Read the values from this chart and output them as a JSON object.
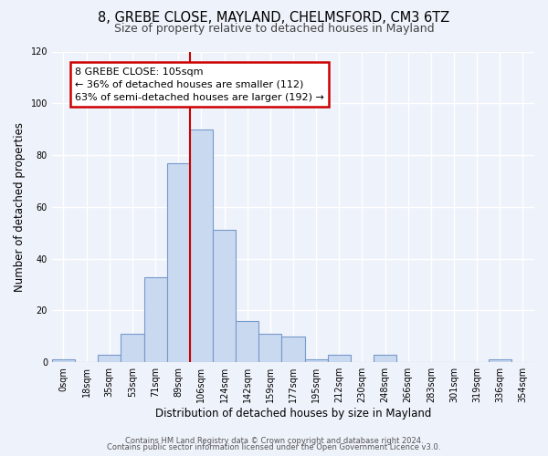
{
  "title1": "8, GREBE CLOSE, MAYLAND, CHELMSFORD, CM3 6TZ",
  "title2": "Size of property relative to detached houses in Mayland",
  "xlabel": "Distribution of detached houses by size in Mayland",
  "ylabel": "Number of detached properties",
  "bin_labels": [
    "0sqm",
    "18sqm",
    "35sqm",
    "53sqm",
    "71sqm",
    "89sqm",
    "106sqm",
    "124sqm",
    "142sqm",
    "159sqm",
    "177sqm",
    "195sqm",
    "212sqm",
    "230sqm",
    "248sqm",
    "266sqm",
    "283sqm",
    "301sqm",
    "319sqm",
    "336sqm",
    "354sqm"
  ],
  "bar_heights": [
    1,
    0,
    3,
    11,
    33,
    77,
    90,
    51,
    16,
    11,
    10,
    1,
    3,
    0,
    3,
    0,
    0,
    0,
    0,
    1,
    0
  ],
  "bar_color": "#c9d9f0",
  "bar_edge_color": "#7799cc",
  "ref_line_x": 5.5,
  "ref_line_color": "#cc0000",
  "annotation_text": "8 GREBE CLOSE: 105sqm\n← 36% of detached houses are smaller (112)\n63% of semi-detached houses are larger (192) →",
  "annotation_box_color": "#ffffff",
  "annotation_box_edge_color": "#cc0000",
  "ylim": [
    0,
    120
  ],
  "yticks": [
    0,
    20,
    40,
    60,
    80,
    100,
    120
  ],
  "footer_line1": "Contains HM Land Registry data © Crown copyright and database right 2024.",
  "footer_line2": "Contains public sector information licensed under the Open Government Licence v3.0.",
  "background_color": "#eef2fa",
  "title1_fontsize": 10.5,
  "title2_fontsize": 9,
  "xlabel_fontsize": 8.5,
  "ylabel_fontsize": 8.5,
  "tick_fontsize": 7,
  "footer_fontsize": 6,
  "annot_fontsize": 8
}
